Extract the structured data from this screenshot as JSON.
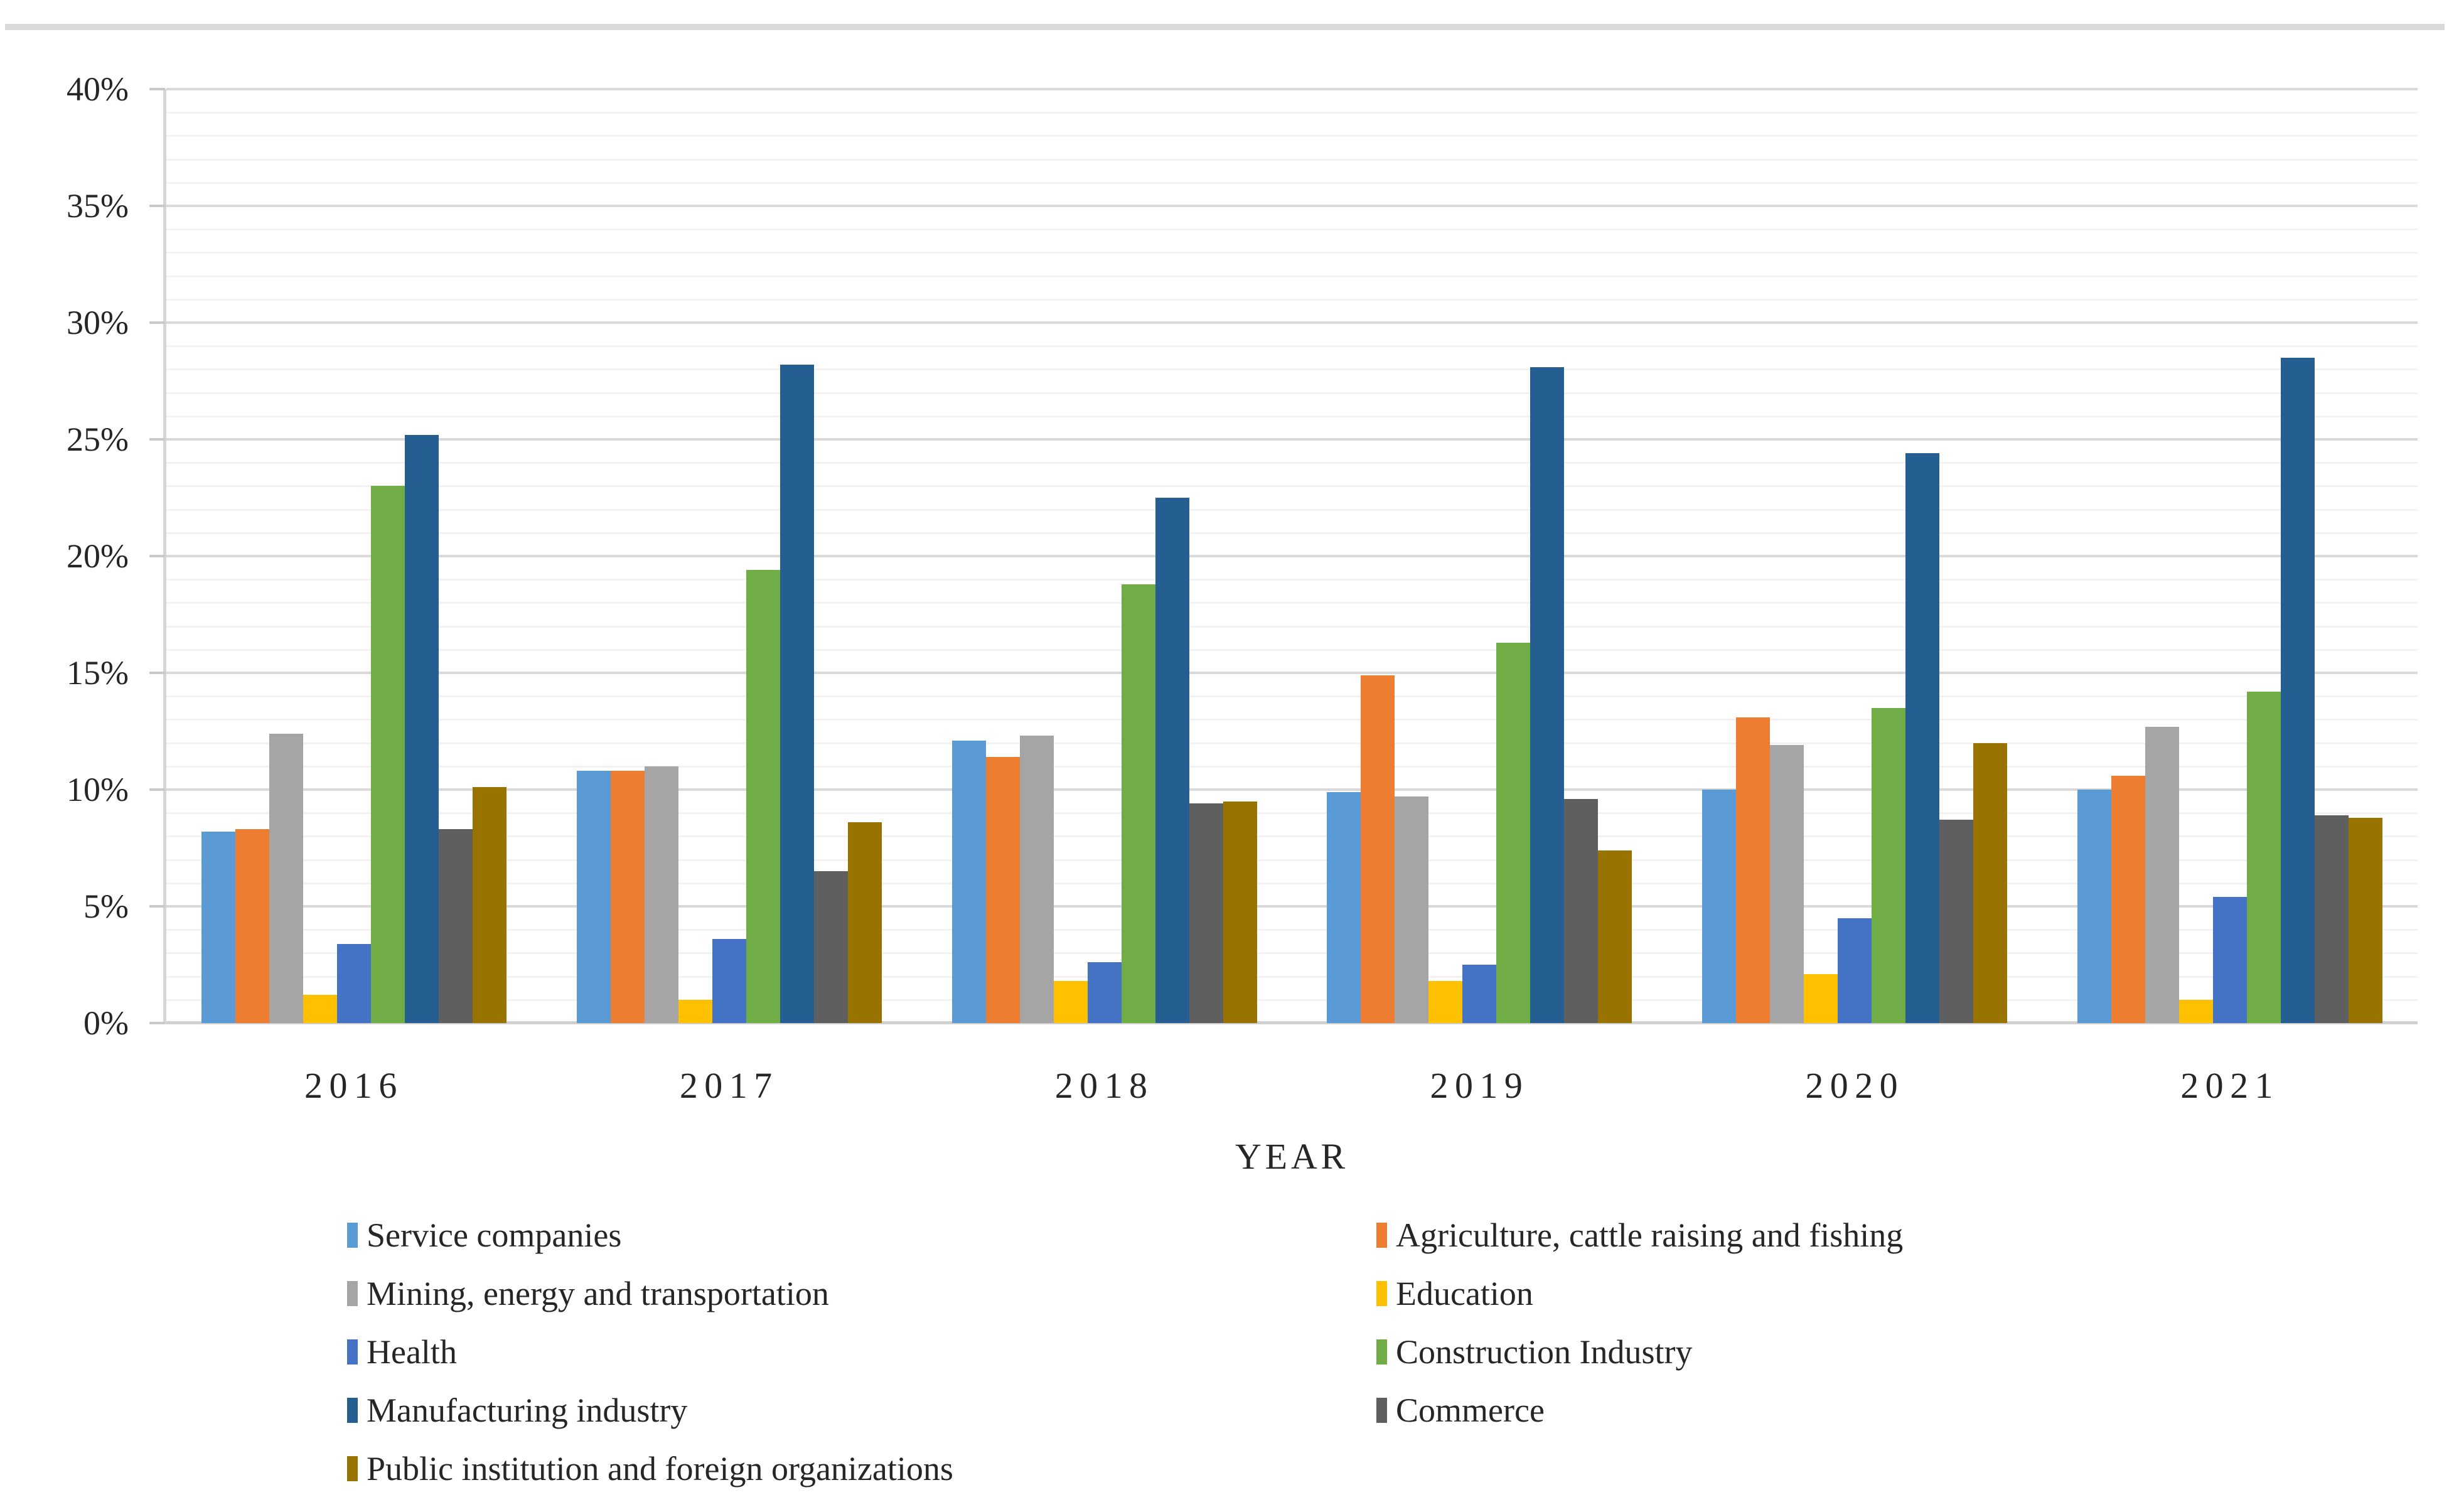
{
  "figure": {
    "background": "#FFFFFF",
    "top_border_color": "#D9D9D9",
    "text_color": "#262626"
  },
  "chart_data": {
    "type": "bar",
    "title": "",
    "xlabel": "YEAR",
    "ylabel": "",
    "categories": [
      "2016",
      "2017",
      "2018",
      "2019",
      "2020",
      "2021"
    ],
    "y_axis": {
      "min": 0,
      "max": 40,
      "major_step": 5,
      "minor_step": 1,
      "unit": "%",
      "tick_labels": [
        "0%",
        "5%",
        "10%",
        "15%",
        "20%",
        "25%",
        "30%",
        "35%",
        "40%"
      ]
    },
    "grid": {
      "major_color": "#D9D9D9",
      "minor_color": "#F2F2F2",
      "axis_color": "#D0D0D0"
    },
    "legend_position": "bottom, two columns",
    "series": [
      {
        "name": "Service companies",
        "color": "#5B9BD5",
        "values": [
          8.2,
          10.8,
          12.1,
          9.9,
          10.0,
          10.0
        ]
      },
      {
        "name": "Agriculture, cattle raising and fishing",
        "color": "#ED7D31",
        "values": [
          8.3,
          10.8,
          11.4,
          14.9,
          13.1,
          10.6
        ]
      },
      {
        "name": "Mining, energy and transportation",
        "color": "#A5A5A5",
        "values": [
          12.4,
          11.0,
          12.3,
          9.7,
          11.9,
          12.7
        ]
      },
      {
        "name": "Education",
        "color": "#FFC000",
        "values": [
          1.2,
          1.0,
          1.8,
          1.8,
          2.1,
          1.0
        ]
      },
      {
        "name": "Health",
        "color": "#4472C4",
        "values": [
          3.4,
          3.6,
          2.6,
          2.5,
          4.5,
          5.4
        ]
      },
      {
        "name": "Construction Industry",
        "color": "#70AD47",
        "values": [
          23.0,
          19.4,
          18.8,
          16.3,
          13.5,
          14.2
        ]
      },
      {
        "name": "Manufacturing industry",
        "color": "#255E91",
        "values": [
          25.2,
          28.2,
          22.5,
          28.1,
          24.4,
          28.5
        ]
      },
      {
        "name": "Commerce",
        "color": "#5F5F5F",
        "values": [
          8.3,
          6.5,
          9.4,
          9.6,
          8.7,
          8.9
        ]
      },
      {
        "name": "Public institution and foreign organizations",
        "color": "#997300",
        "values": [
          10.1,
          8.6,
          9.5,
          7.4,
          12.0,
          8.8
        ]
      }
    ],
    "legend_columns": {
      "left": [
        0,
        2,
        4,
        6,
        8
      ],
      "right": [
        1,
        3,
        5,
        7
      ]
    }
  }
}
